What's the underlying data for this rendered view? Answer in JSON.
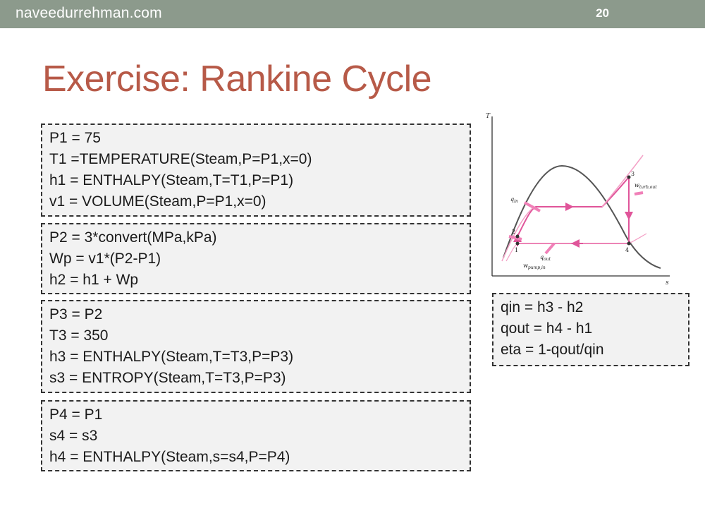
{
  "header": {
    "site": "naveedurrehman.com",
    "page_number": "20"
  },
  "slide": {
    "title": "Exercise: Rankine Cycle"
  },
  "code_blocks": [
    [
      "P1 = 75",
      "T1 =TEMPERATURE(Steam,P=P1,x=0)",
      "h1 = ENTHALPY(Steam,T=T1,P=P1)",
      "v1 = VOLUME(Steam,P=P1,x=0)"
    ],
    [
      "P2 = 3*convert(MPa,kPa)",
      "Wp = v1*(P2-P1)",
      "h2 = h1 + Wp"
    ],
    [
      "P3 = P2",
      "T3 = 350",
      "h3 = ENTHALPY(Steam,T=T3,P=P3)",
      "s3 = ENTROPY(Steam,T=T3,P=P3)"
    ],
    [
      "P4 = P1",
      "s4 = s3",
      "h4 = ENTHALPY(Steam,s=s4,P=P4)"
    ],
    [
      "qin = h3 - h2",
      "qout = h4 - h1",
      "eta = 1-qout/qin"
    ]
  ],
  "diagram": {
    "axis_t": "T",
    "axis_s": "s",
    "q_in": "q",
    "q_in_sub": "in",
    "q_out": "q",
    "q_out_sub": "out",
    "w_turb": "w",
    "w_turb_sub": "turb,out",
    "w_pump": "w",
    "w_pump_sub": "pump,in",
    "state_1": "1",
    "state_2": "2",
    "state_3": "3",
    "state_4": "4",
    "colors": {
      "dome": "#555555",
      "cycle": "#e0559a",
      "arrow": "#f080b8"
    }
  }
}
